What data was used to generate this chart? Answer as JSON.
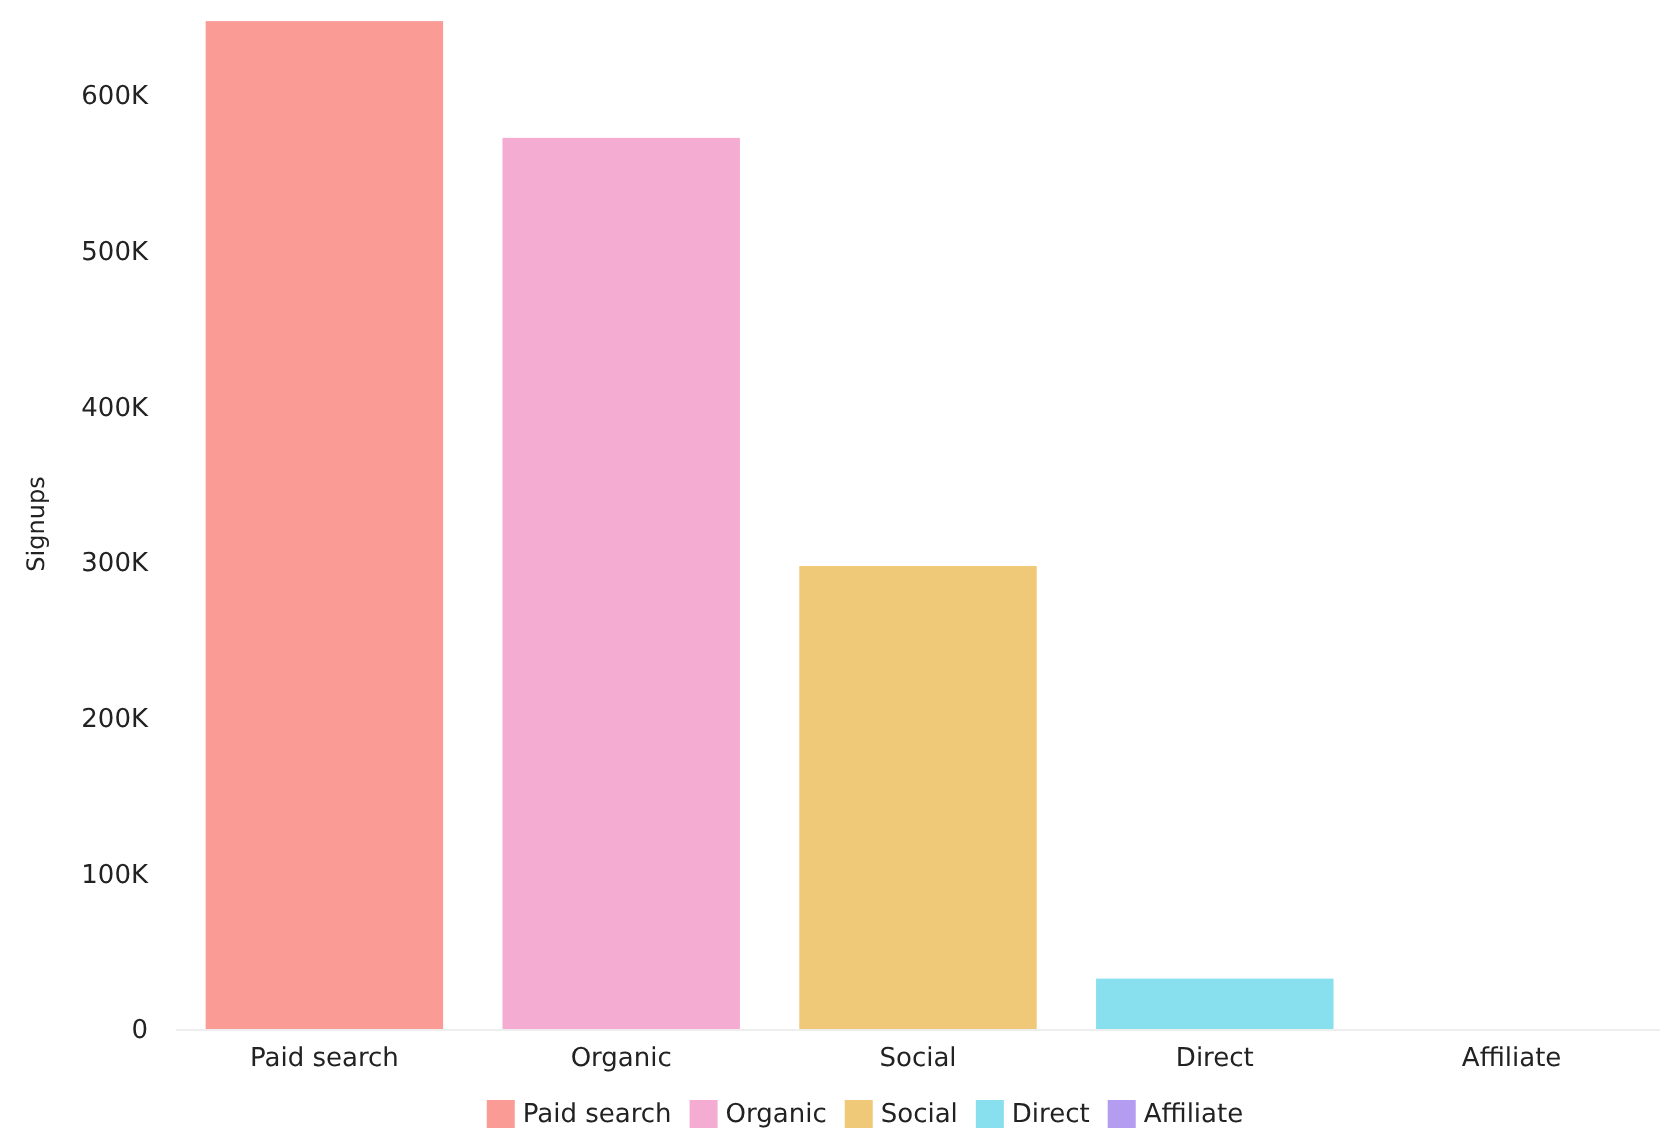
{
  "chart_data": {
    "type": "bar",
    "ylabel": "Signups",
    "categories": [
      "Paid search",
      "Organic",
      "Social",
      "Direct",
      "Affiliate"
    ],
    "series": [
      {
        "name": "Paid search",
        "color": "#fa9c95",
        "values": [
          648000,
          null,
          null,
          null,
          null
        ]
      },
      {
        "name": "Organic",
        "color": "#f4acd2",
        "values": [
          null,
          573000,
          null,
          null,
          null
        ]
      },
      {
        "name": "Social",
        "color": "#efc978",
        "values": [
          null,
          null,
          298000,
          null,
          null
        ]
      },
      {
        "name": "Direct",
        "color": "#88dfed",
        "values": [
          null,
          null,
          null,
          33000,
          null
        ]
      },
      {
        "name": "Affiliate",
        "color": "#b49cf0",
        "values": [
          null,
          null,
          null,
          null,
          0
        ]
      }
    ],
    "ylim": [
      0,
      650000
    ],
    "yticks": [
      {
        "value": 0,
        "label": "0"
      },
      {
        "value": 100000,
        "label": "100K"
      },
      {
        "value": 200000,
        "label": "200K"
      },
      {
        "value": 300000,
        "label": "300K"
      },
      {
        "value": 400000,
        "label": "400K"
      },
      {
        "value": 500000,
        "label": "500K"
      },
      {
        "value": 600000,
        "label": "600K"
      }
    ],
    "grid": false,
    "legend": "bottom"
  }
}
